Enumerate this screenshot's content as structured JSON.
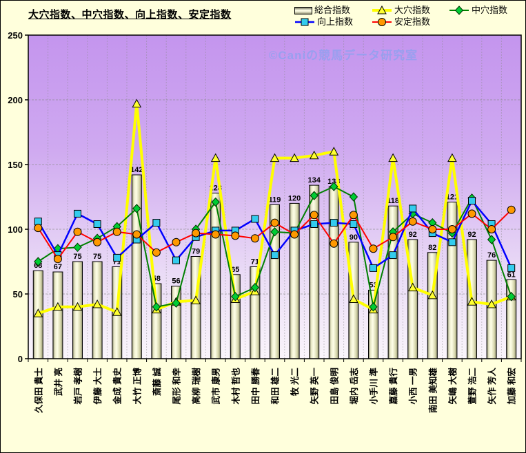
{
  "title": "大穴指数、中穴指数、向上指数、安定指数",
  "watermark": "©Caniの競馬データ研究室",
  "colors": {
    "background": "#FFFFDC",
    "plot_gradient_top": "#C495EE",
    "plot_gradient_bottom": "#FAF5FB",
    "watermark_text": "#95A0F0",
    "gridline": "#8A8A8A",
    "axis": "#000000"
  },
  "legend": {
    "columns": 3
  },
  "chart_data": {
    "type": "combo",
    "title": "大穴指数、中穴指数、向上指数、安定指数",
    "ylim": [
      0,
      250
    ],
    "yticks": [
      0,
      50,
      100,
      150,
      200,
      250
    ],
    "grid": "both-dashed",
    "legend_position": "top-right",
    "bar_labels_shown": true,
    "categories": [
      "久保田 貴士",
      "武井 亮",
      "岩戸 孝樹",
      "伊藤 大士",
      "金成 貴史",
      "大竹 正博",
      "斎藤 誠",
      "尾形 和幸",
      "高柳 瑞樹",
      "武市 康男",
      "木村 哲也",
      "田中 勝春",
      "和田 雄二",
      "牧 光二",
      "矢野 英一",
      "田島 俊明",
      "堀内 岳志",
      "小手川 準",
      "嘉藤 貴行",
      "小西 一男",
      "南田 美知雄",
      "矢嶋 大樹",
      "萱野 浩二",
      "矢作 芳人",
      "加藤 和宏"
    ],
    "series": [
      {
        "name": "総合指数",
        "type": "bar",
        "color": "#E8E8C0",
        "edge": "#000000",
        "values": [
          68,
          67,
          75,
          75,
          71,
          142,
          58,
          56,
          79,
          128,
          65,
          71,
          119,
          120,
          134,
          133,
          90,
          53,
          118,
          92,
          82,
          121,
          92,
          76,
          61
        ]
      },
      {
        "name": "大穴指数",
        "type": "line",
        "marker": "triangle",
        "color": "#FFFF00",
        "marker_color": "#FFFF33",
        "line_width": 4,
        "values": [
          35,
          40,
          40,
          42,
          36,
          197,
          38,
          44,
          45,
          155,
          46,
          52,
          155,
          155,
          157,
          160,
          46,
          38,
          155,
          55,
          49,
          155,
          44,
          42,
          48
        ]
      },
      {
        "name": "中穴指数",
        "type": "line",
        "marker": "diamond",
        "color": "#008000",
        "marker_color": "#00CC33",
        "line_width": 2,
        "values": [
          75,
          85,
          86,
          93,
          102,
          116,
          40,
          43,
          100,
          121,
          48,
          55,
          98,
          97,
          126,
          133,
          125,
          40,
          98,
          112,
          105,
          97,
          124,
          92,
          48
        ]
      },
      {
        "name": "向上指数",
        "type": "line",
        "marker": "square",
        "color": "#0000FF",
        "marker_color": "#33CCEE",
        "line_width": 2.5,
        "values": [
          106,
          80,
          112,
          104,
          78,
          92,
          105,
          76,
          94,
          99,
          99,
          108,
          80,
          99,
          104,
          105,
          104,
          70,
          80,
          116,
          97,
          90,
          122,
          104,
          70
        ]
      },
      {
        "name": "安定指数",
        "type": "line",
        "marker": "circle",
        "color": "#FF0000",
        "marker_color": "#FF9900",
        "line_width": 2,
        "values": [
          101,
          77,
          98,
          90,
          98,
          96,
          82,
          90,
          97,
          96,
          95,
          93,
          105,
          96,
          111,
          89,
          111,
          85,
          94,
          106,
          100,
          100,
          112,
          100,
          115
        ]
      }
    ]
  }
}
